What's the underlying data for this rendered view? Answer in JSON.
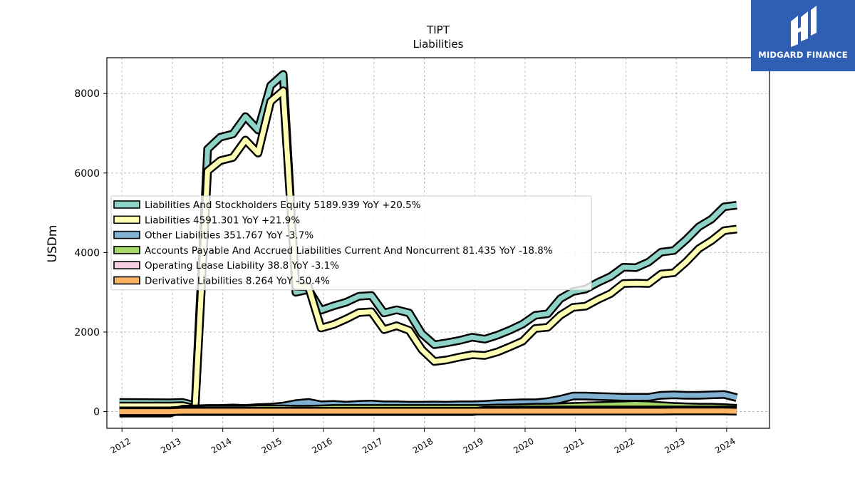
{
  "brand": {
    "name": "MIDGARD FINANCE",
    "bg_color": "#2f5fb3"
  },
  "chart_data": {
    "type": "area",
    "title": "TIPT",
    "subtitle": "Liabilities",
    "ylabel": "USDm",
    "xlabel": "",
    "xlim": [
      2011.7,
      2024.85
    ],
    "ylim": [
      -420,
      8900
    ],
    "yticks": [
      0,
      2000,
      4000,
      6000,
      8000
    ],
    "xticks": [
      "2012",
      "2013",
      "2014",
      "2015",
      "2016",
      "2017",
      "2018",
      "2019",
      "2020",
      "2021",
      "2022",
      "2023",
      "2024"
    ],
    "grid": true,
    "legend_position": "center-left",
    "x": [
      2011.95,
      2012.95,
      2013.2,
      2013.45,
      2013.7,
      2013.95,
      2014.2,
      2014.45,
      2014.7,
      2014.95,
      2015.2,
      2015.45,
      2015.7,
      2015.95,
      2016.2,
      2016.45,
      2016.7,
      2016.95,
      2017.2,
      2017.45,
      2017.7,
      2017.95,
      2018.2,
      2018.45,
      2018.7,
      2018.95,
      2019.2,
      2019.45,
      2019.7,
      2019.95,
      2020.2,
      2020.45,
      2020.7,
      2020.95,
      2021.2,
      2021.45,
      2021.7,
      2021.95,
      2022.2,
      2022.45,
      2022.7,
      2022.95,
      2023.2,
      2023.45,
      2023.7,
      2023.95,
      2024.2
    ],
    "series": [
      {
        "name": "Liabilities And Stockholders Equity",
        "legend": "Liabilities And Stockholders Equity  5189.939 YoY +20.5%",
        "color": "#8dd3c7",
        "values": [
          230,
          220,
          230,
          150,
          6600,
          6900,
          6980,
          7420,
          7080,
          8200,
          8480,
          3000,
          3070,
          2550,
          2660,
          2750,
          2900,
          2920,
          2480,
          2560,
          2480,
          1960,
          1680,
          1730,
          1790,
          1870,
          1820,
          1920,
          2050,
          2200,
          2420,
          2460,
          2840,
          3020,
          3080,
          3250,
          3400,
          3630,
          3620,
          3760,
          4010,
          4050,
          4330,
          4650,
          4840,
          5150,
          5190
        ]
      },
      {
        "name": "Liabilities",
        "legend": "Liabilities  4591.301 YoY +21.9%",
        "color": "#ffffb3",
        "values": [
          140,
          140,
          150,
          80,
          6050,
          6310,
          6390,
          6830,
          6500,
          7800,
          8070,
          3150,
          3140,
          2100,
          2190,
          2330,
          2490,
          2510,
          2060,
          2160,
          2040,
          1560,
          1260,
          1300,
          1370,
          1430,
          1410,
          1500,
          1630,
          1770,
          2090,
          2120,
          2420,
          2620,
          2650,
          2820,
          2970,
          3220,
          3230,
          3220,
          3460,
          3490,
          3770,
          4100,
          4300,
          4550,
          4590
        ]
      },
      {
        "name": "Other Liabilities",
        "legend": "Other Liabilities  351.767 YoY -3.7%",
        "color": "#80b1d3",
        "values": [
          -40,
          -40,
          60,
          70,
          80,
          80,
          90,
          80,
          100,
          110,
          140,
          200,
          230,
          170,
          180,
          160,
          180,
          190,
          170,
          170,
          160,
          160,
          165,
          160,
          170,
          170,
          180,
          200,
          210,
          220,
          220,
          250,
          310,
          390,
          390,
          380,
          370,
          360,
          360,
          360,
          410,
          420,
          410,
          410,
          420,
          430,
          350
        ]
      },
      {
        "name": "Accounts Payable And Accrued Liabilities Current And Noncurrent",
        "legend": "Accounts Payable And Accrued Liabilities Current And Noncurrent  81.435 YoY -18.8%",
        "color": "#a6d96a",
        "values": [
          20,
          20,
          40,
          50,
          60,
          60,
          60,
          60,
          70,
          70,
          70,
          60,
          60,
          70,
          80,
          80,
          80,
          80,
          80,
          80,
          80,
          80,
          80,
          80,
          80,
          80,
          80,
          90,
          90,
          100,
          110,
          110,
          120,
          130,
          140,
          150,
          160,
          170,
          180,
          170,
          150,
          130,
          120,
          110,
          110,
          100,
          81
        ]
      },
      {
        "name": "Operating Lease Liability",
        "legend": "Operating Lease Liability  38.8 YoY -3.1%",
        "color": "#f7cfe2",
        "values": [
          0,
          0,
          0,
          0,
          0,
          0,
          0,
          0,
          0,
          0,
          0,
          0,
          0,
          0,
          0,
          0,
          0,
          0,
          0,
          0,
          0,
          0,
          0,
          0,
          0,
          0,
          30,
          32,
          35,
          38,
          40,
          40,
          40,
          40,
          40,
          40,
          40,
          40,
          40,
          40,
          40,
          40,
          40,
          40,
          40,
          40,
          39
        ]
      },
      {
        "name": "Derivative Liabilities",
        "legend": "Derivative Liabilities  8.264 YoY -50.4%",
        "color": "#fdb462",
        "values": [
          0,
          0,
          10,
          10,
          10,
          10,
          10,
          10,
          10,
          10,
          10,
          10,
          10,
          10,
          10,
          10,
          10,
          10,
          10,
          10,
          10,
          10,
          10,
          10,
          10,
          10,
          10,
          10,
          10,
          10,
          10,
          10,
          10,
          10,
          10,
          10,
          10,
          10,
          10,
          10,
          10,
          15,
          15,
          15,
          16,
          16,
          8
        ]
      }
    ]
  }
}
